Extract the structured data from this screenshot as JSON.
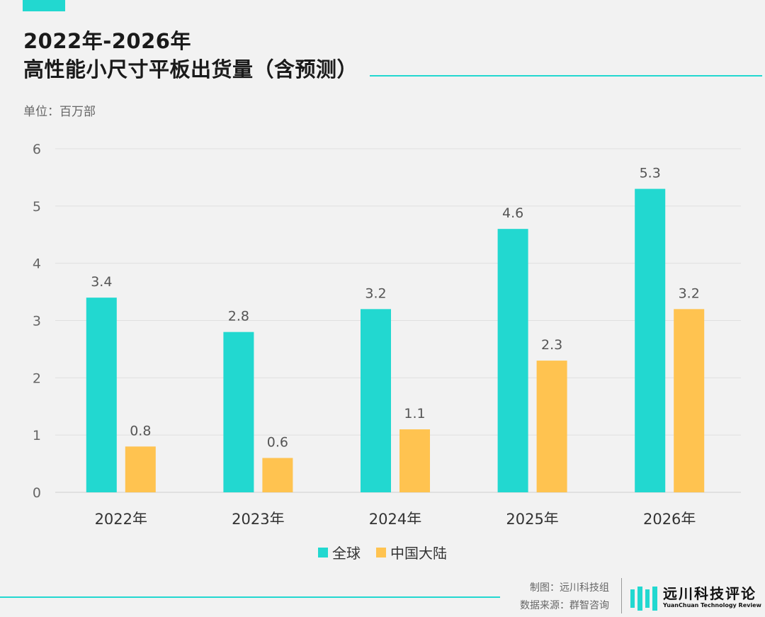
{
  "header": {
    "title_line1": "2022年-2026年",
    "title_line2": "高性能小尺寸平板出货量（含预测）",
    "unit": "单位：百万部"
  },
  "chart_data": {
    "type": "bar",
    "categories": [
      "2022年",
      "2023年",
      "2024年",
      "2025年",
      "2026年"
    ],
    "series": [
      {
        "name": "全球",
        "values": [
          3.4,
          2.8,
          3.2,
          4.6,
          5.3
        ],
        "color": "#22d8d0"
      },
      {
        "name": "中国大陆",
        "values": [
          0.8,
          0.6,
          1.1,
          2.3,
          3.2
        ],
        "color": "#ffc350"
      }
    ],
    "ylim": [
      0,
      6
    ],
    "yticks": [
      0,
      1,
      2,
      3,
      4,
      5,
      6
    ],
    "grid": true,
    "legend_position": "bottom-center"
  },
  "footer": {
    "credit_maker": "制图：远川科技组",
    "credit_source": "数据来源：群智咨询",
    "logo_cn": "远川科技评论",
    "logo_en": "YuanChuan Technology Review"
  },
  "colors": {
    "accent": "#22d8d0",
    "secondary": "#ffc350"
  }
}
